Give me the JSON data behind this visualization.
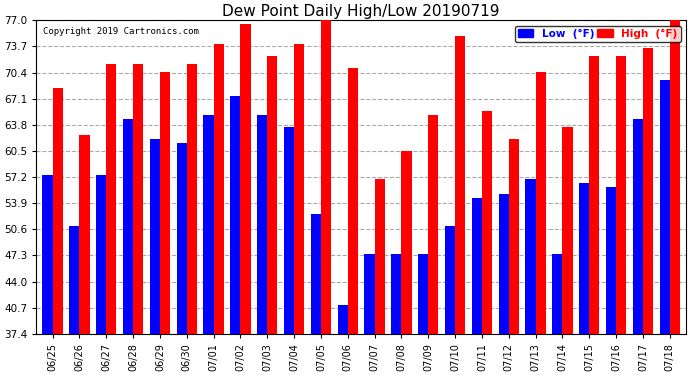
{
  "title": "Dew Point Daily High/Low 20190719",
  "copyright": "Copyright 2019 Cartronics.com",
  "categories": [
    "06/25",
    "06/26",
    "06/27",
    "06/28",
    "06/29",
    "06/30",
    "07/01",
    "07/02",
    "07/03",
    "07/04",
    "07/05",
    "07/06",
    "07/07",
    "07/08",
    "07/09",
    "07/10",
    "07/11",
    "07/12",
    "07/13",
    "07/14",
    "07/15",
    "07/16",
    "07/17",
    "07/18"
  ],
  "high": [
    68.5,
    62.5,
    71.5,
    71.5,
    70.5,
    71.5,
    74.0,
    76.5,
    72.5,
    74.0,
    77.0,
    71.0,
    57.0,
    60.5,
    65.0,
    75.0,
    65.5,
    62.0,
    70.5,
    63.5,
    72.5,
    72.5,
    73.5,
    77.0
  ],
  "low": [
    57.5,
    51.0,
    57.5,
    64.5,
    62.0,
    61.5,
    65.0,
    67.5,
    65.0,
    63.5,
    52.5,
    41.0,
    47.5,
    47.5,
    47.5,
    51.0,
    54.5,
    55.0,
    57.0,
    47.5,
    56.5,
    56.0,
    64.5,
    69.5
  ],
  "high_color": "#FF0000",
  "low_color": "#0000FF",
  "bg_color": "#FFFFFF",
  "grid_color": "#AAAAAA",
  "ylim_min": 37.4,
  "ylim_max": 77.0,
  "yticks": [
    37.4,
    40.7,
    44.0,
    47.3,
    50.6,
    53.9,
    57.2,
    60.5,
    63.8,
    67.1,
    70.4,
    73.7,
    77.0
  ],
  "legend_low_label": "Low  (°F)",
  "legend_high_label": "High  (°F)"
}
